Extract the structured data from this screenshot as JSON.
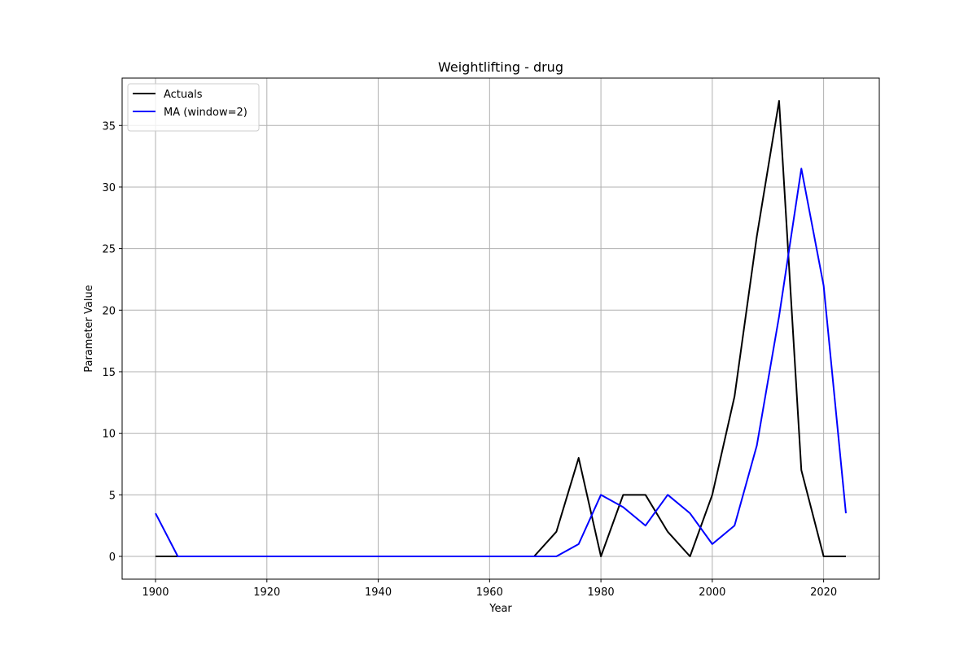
{
  "chart_data": {
    "type": "line",
    "title": "Weightlifting - drug",
    "xlabel": "Year",
    "ylabel": "Parameter Value",
    "xlim": [
      1894,
      2030
    ],
    "ylim": [
      -1.85,
      38.85
    ],
    "x_ticks": [
      1900,
      1920,
      1940,
      1960,
      1980,
      2000,
      2020
    ],
    "y_ticks": [
      0,
      5,
      10,
      15,
      20,
      25,
      30,
      35
    ],
    "grid": true,
    "legend_position": "top-left",
    "x": [
      1900,
      1904,
      1908,
      1912,
      1916,
      1920,
      1924,
      1928,
      1932,
      1936,
      1940,
      1944,
      1948,
      1952,
      1956,
      1960,
      1964,
      1968,
      1972,
      1976,
      1980,
      1984,
      1988,
      1992,
      1996,
      2000,
      2004,
      2008,
      2012,
      2016,
      2020,
      2024
    ],
    "series": [
      {
        "name": "Actuals",
        "color": "#000000",
        "values": [
          0,
          0,
          0,
          0,
          0,
          0,
          0,
          0,
          0,
          0,
          0,
          0,
          0,
          0,
          0,
          0,
          0,
          0,
          2,
          8,
          0,
          5,
          5,
          2,
          0,
          5,
          13,
          26,
          37,
          7,
          0,
          0
        ]
      },
      {
        "name": "MA (window=2)",
        "color": "#0000ff",
        "values": [
          3.5,
          0,
          0,
          0,
          0,
          0,
          0,
          0,
          0,
          0,
          0,
          0,
          0,
          0,
          0,
          0,
          0,
          0,
          0,
          1,
          5,
          4,
          2.5,
          5,
          3.5,
          1,
          2.5,
          9,
          19.5,
          31.5,
          22,
          3.5
        ]
      }
    ]
  }
}
